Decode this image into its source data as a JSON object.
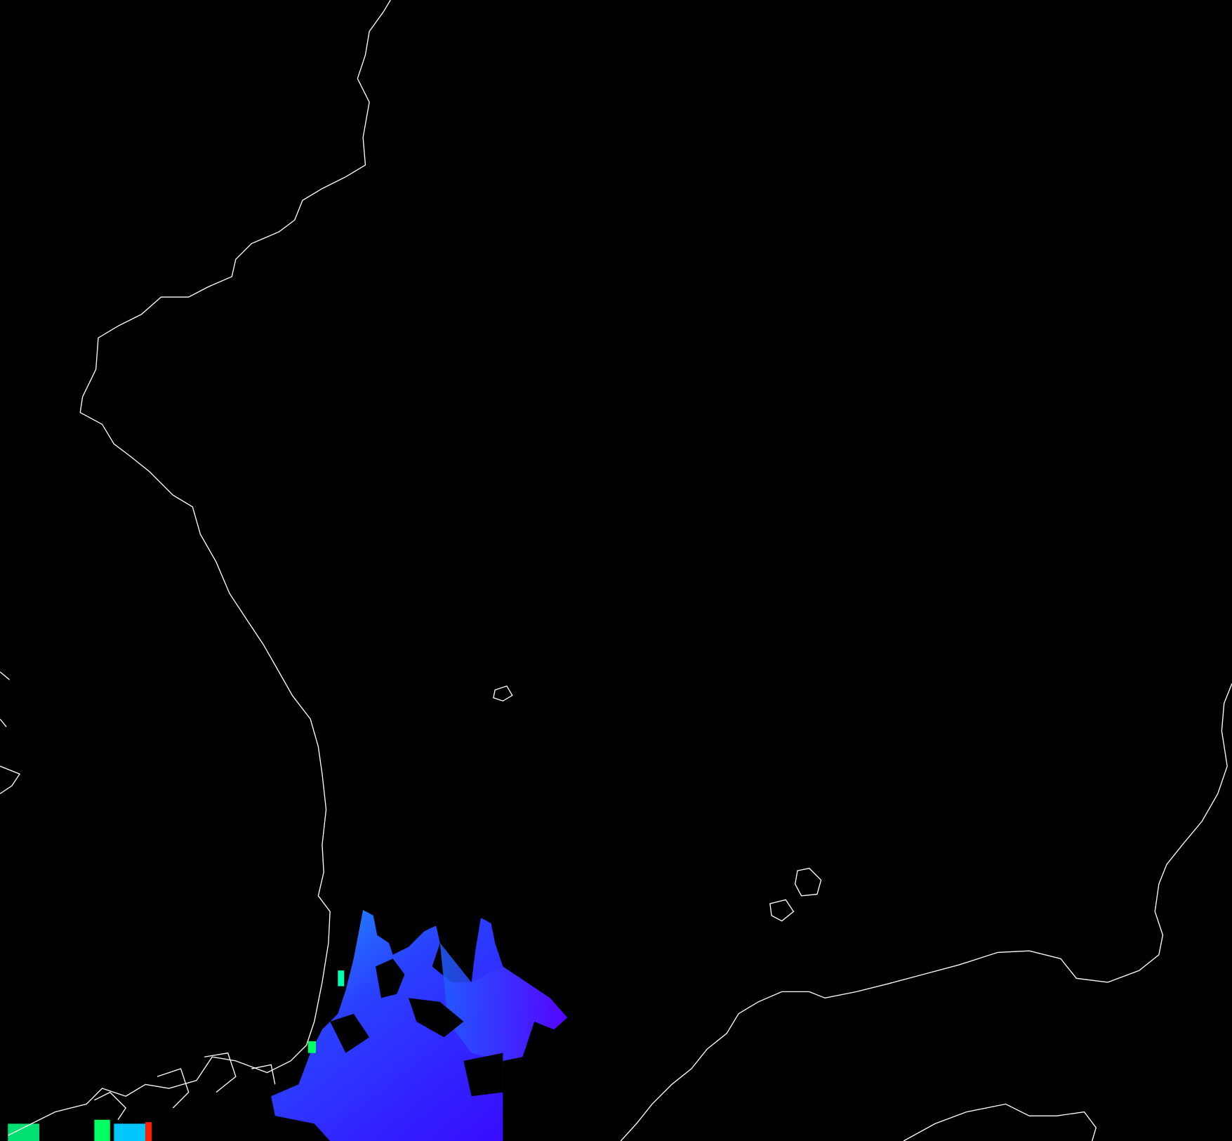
{
  "map": {
    "background_color": "#000000",
    "coastline_color": "#ffffff",
    "data_overlay": {
      "colormap": "rainbow",
      "dominant_colors": [
        "#3a00ff",
        "#2a3cff",
        "#1e7bff",
        "#00e0ff",
        "#00ff60",
        "#ffe000",
        "#ff2000"
      ]
    }
  }
}
